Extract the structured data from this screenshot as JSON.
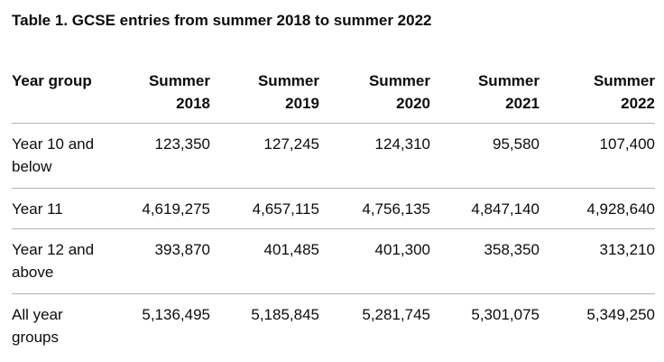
{
  "caption": "Table 1. GCSE entries from summer 2018 to summer 2022",
  "headers": {
    "row_header": "Year group",
    "columns": [
      {
        "line1": "Summer",
        "line2": "2018"
      },
      {
        "line1": "Summer",
        "line2": "2019"
      },
      {
        "line1": "Summer",
        "line2": "2020"
      },
      {
        "line1": "Summer",
        "line2": "2021"
      },
      {
        "line1": "Summer",
        "line2": "2022"
      }
    ]
  },
  "rows": [
    {
      "line1": "Year 10 and",
      "line2": "below",
      "values": [
        "123,350",
        "127,245",
        "124,310",
        "95,580",
        "107,400"
      ]
    },
    {
      "line1": "Year 11",
      "line2": "",
      "values": [
        "4,619,275",
        "4,657,115",
        "4,756,135",
        "4,847,140",
        "4,928,640"
      ]
    },
    {
      "line1": "Year 12 and",
      "line2": "above",
      "values": [
        "393,870",
        "401,485",
        "401,300",
        "358,350",
        "313,210"
      ]
    },
    {
      "line1": "All year",
      "line2": "groups",
      "values": [
        "5,136,495",
        "5,185,845",
        "5,281,745",
        "5,301,075",
        "5,349,250"
      ]
    }
  ]
}
